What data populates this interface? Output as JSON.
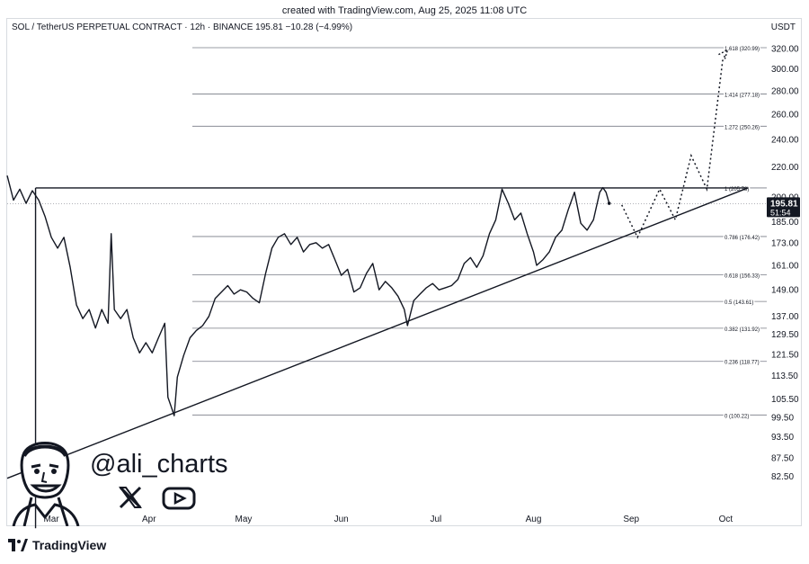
{
  "header": {
    "credit": "created with TradingView.com, Aug 25, 2025 11:08 UTC",
    "symbol_line": "SOL / TetherUS PERPETUAL CONTRACT · 12h · BINANCE  195.81  −10.28 (−4.99%)",
    "currency": "USDT"
  },
  "footer": {
    "brand": "TradingView"
  },
  "watermark": {
    "handle": "@ali_charts",
    "icons": [
      "x-icon",
      "youtube-icon"
    ]
  },
  "chart_data": {
    "type": "line",
    "y_axis": {
      "ticks": [
        "320.00",
        "300.00",
        "280.00",
        "260.00",
        "240.00",
        "220.00",
        "200.00",
        "185.00",
        "173.00",
        "161.00",
        "149.00",
        "137.00",
        "129.50",
        "121.50",
        "113.50",
        "105.50",
        "99.50",
        "93.50",
        "87.50",
        "82.50"
      ],
      "current_price": "195.81",
      "countdown": "51:54"
    },
    "x_axis": {
      "ticks": [
        "Mar",
        "Apr",
        "May",
        "Jun",
        "Jul",
        "Aug",
        "Sep",
        "Oct"
      ]
    },
    "fib_levels": [
      {
        "ratio": 1.618,
        "value": 320.99,
        "label": "1.618 (320.99)"
      },
      {
        "ratio": 1.414,
        "value": 277.18,
        "label": "1.414 (277.18)"
      },
      {
        "ratio": 1.272,
        "value": 250.26,
        "label": "1.272 (250.26)"
      },
      {
        "ratio": 1,
        "value": 205.78,
        "label": "1 (205.78)"
      },
      {
        "ratio": 0.786,
        "value": 176.42,
        "label": "0.786 (176.42)"
      },
      {
        "ratio": 0.618,
        "value": 156.33,
        "label": "0.618 (156.33)"
      },
      {
        "ratio": 0.5,
        "value": 143.61,
        "label": "0.5 (143.61)"
      },
      {
        "ratio": 0.382,
        "value": 131.92,
        "label": "0.382 (131.92)"
      },
      {
        "ratio": 0.236,
        "value": 118.77,
        "label": "0.236 (118.77)"
      },
      {
        "ratio": 0,
        "value": 100.22,
        "label": "0 (100.22)"
      }
    ],
    "colors": {
      "price_line": "#131722",
      "fib_line": "#787b86",
      "last_price_badge": "#131722"
    },
    "series": [
      {
        "points": [
          [
            "2025-02-15",
            214
          ],
          [
            "2025-02-17",
            198
          ],
          [
            "2025-02-19",
            205
          ],
          [
            "2025-02-21",
            196
          ],
          [
            "2025-02-23",
            204
          ],
          [
            "2025-02-25",
            198
          ],
          [
            "2025-02-27",
            188
          ],
          [
            "2025-03-01",
            176
          ],
          [
            "2025-03-03",
            170
          ],
          [
            "2025-03-05",
            176
          ],
          [
            "2025-03-07",
            160
          ],
          [
            "2025-03-09",
            142
          ],
          [
            "2025-03-11",
            136
          ],
          [
            "2025-03-13",
            140
          ],
          [
            "2025-03-15",
            132
          ],
          [
            "2025-03-17",
            140
          ],
          [
            "2025-03-19",
            134
          ],
          [
            "2025-03-20",
            178
          ],
          [
            "2025-03-21",
            140
          ],
          [
            "2025-03-23",
            136
          ],
          [
            "2025-03-25",
            140
          ],
          [
            "2025-03-27",
            128
          ],
          [
            "2025-03-29",
            122
          ],
          [
            "2025-03-31",
            126
          ],
          [
            "2025-04-02",
            122
          ],
          [
            "2025-04-04",
            128
          ],
          [
            "2025-04-06",
            134
          ],
          [
            "2025-04-07",
            106
          ],
          [
            "2025-04-08",
            103
          ],
          [
            "2025-04-09",
            100
          ],
          [
            "2025-04-10",
            113
          ],
          [
            "2025-04-12",
            121
          ],
          [
            "2025-04-14",
            128
          ],
          [
            "2025-04-16",
            131
          ],
          [
            "2025-04-18",
            133
          ],
          [
            "2025-04-20",
            137
          ],
          [
            "2025-04-22",
            145
          ],
          [
            "2025-04-24",
            148
          ],
          [
            "2025-04-26",
            151
          ],
          [
            "2025-04-28",
            147
          ],
          [
            "2025-04-30",
            149
          ],
          [
            "2025-05-02",
            148
          ],
          [
            "2025-05-04",
            145
          ],
          [
            "2025-05-06",
            143
          ],
          [
            "2025-05-08",
            157
          ],
          [
            "2025-05-10",
            170
          ],
          [
            "2025-05-12",
            176
          ],
          [
            "2025-05-14",
            178
          ],
          [
            "2025-05-16",
            172
          ],
          [
            "2025-05-18",
            176
          ],
          [
            "2025-05-20",
            168
          ],
          [
            "2025-05-22",
            172
          ],
          [
            "2025-05-24",
            173
          ],
          [
            "2025-05-26",
            170
          ],
          [
            "2025-05-28",
            172
          ],
          [
            "2025-05-30",
            164
          ],
          [
            "2025-06-01",
            156
          ],
          [
            "2025-06-03",
            159
          ],
          [
            "2025-06-05",
            148
          ],
          [
            "2025-06-07",
            150
          ],
          [
            "2025-06-09",
            157
          ],
          [
            "2025-06-11",
            162
          ],
          [
            "2025-06-13",
            149
          ],
          [
            "2025-06-15",
            153
          ],
          [
            "2025-06-17",
            150
          ],
          [
            "2025-06-19",
            146
          ],
          [
            "2025-06-21",
            140
          ],
          [
            "2025-06-22",
            133
          ],
          [
            "2025-06-24",
            144
          ],
          [
            "2025-06-26",
            147
          ],
          [
            "2025-06-28",
            150
          ],
          [
            "2025-06-30",
            152
          ],
          [
            "2025-07-02",
            149
          ],
          [
            "2025-07-04",
            150
          ],
          [
            "2025-07-06",
            151
          ],
          [
            "2025-07-08",
            154
          ],
          [
            "2025-07-10",
            162
          ],
          [
            "2025-07-12",
            165
          ],
          [
            "2025-07-14",
            160
          ],
          [
            "2025-07-16",
            166
          ],
          [
            "2025-07-18",
            178
          ],
          [
            "2025-07-20",
            186
          ],
          [
            "2025-07-22",
            205
          ],
          [
            "2025-07-24",
            196
          ],
          [
            "2025-07-26",
            186
          ],
          [
            "2025-07-28",
            190
          ],
          [
            "2025-07-30",
            178
          ],
          [
            "2025-08-01",
            168
          ],
          [
            "2025-08-02",
            161
          ],
          [
            "2025-08-04",
            164
          ],
          [
            "2025-08-06",
            168
          ],
          [
            "2025-08-08",
            176
          ],
          [
            "2025-08-10",
            180
          ],
          [
            "2025-08-12",
            192
          ],
          [
            "2025-08-14",
            203
          ],
          [
            "2025-08-16",
            184
          ],
          [
            "2025-08-18",
            180
          ],
          [
            "2025-08-20",
            186
          ],
          [
            "2025-08-22",
            203
          ],
          [
            "2025-08-23",
            206
          ],
          [
            "2025-08-24",
            203
          ],
          [
            "2025-08-25",
            196
          ]
        ]
      }
    ],
    "projection": {
      "points": [
        [
          "2025-08-29",
          195
        ],
        [
          "2025-09-03",
          176
        ],
        [
          "2025-09-10",
          205
        ],
        [
          "2025-09-15",
          186
        ],
        [
          "2025-09-20",
          228
        ],
        [
          "2025-09-25",
          205
        ],
        [
          "2025-09-30",
          308
        ],
        [
          "2025-10-01",
          315
        ]
      ]
    },
    "trendlines": [
      {
        "from": [
          "2025-02-24",
          205.78
        ],
        "to": [
          "2025-10-08",
          205.78
        ]
      },
      {
        "from": [
          "2025-02-24",
          205.78
        ],
        "to": [
          "2025-02-24",
          70
        ]
      },
      {
        "from": [
          "2025-02-15",
          82
        ],
        "to": [
          "2025-10-08",
          205.78
        ]
      }
    ],
    "x_range": [
      "2025-02-15",
      "2025-10-14"
    ]
  }
}
